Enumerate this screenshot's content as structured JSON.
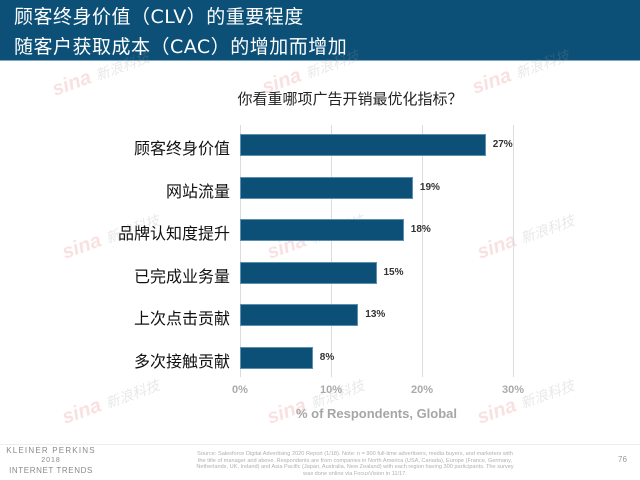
{
  "header": {
    "title_line1": "顾客终身价值（CLV）的重要程度",
    "title_line2": "随客户获取成本（CAC）的增加而增加",
    "background_color": "#0c5078"
  },
  "chart_data": {
    "type": "bar",
    "orientation": "horizontal",
    "title": "你看重哪项广告开销最优化指标？",
    "categories": [
      "顾客终身价值",
      "网站流量",
      "品牌认知度提升",
      "已完成业务量",
      "上次点击贡献",
      "多次接触贡献"
    ],
    "values": [
      27,
      19,
      18,
      15,
      13,
      8
    ],
    "value_labels": [
      "27%",
      "19%",
      "18%",
      "15%",
      "13%",
      "8%"
    ],
    "xlabel": "% of Respondents, Global",
    "ylabel": "",
    "xlim": [
      0,
      30
    ],
    "x_ticks": [
      "0%",
      "10%",
      "20%",
      "30%"
    ],
    "grid": true,
    "bar_color": "#0c5078",
    "legend": null
  },
  "footer": {
    "brand_line1": "KLEINER PERKINS",
    "brand_line2": "2018",
    "brand_line3": "INTERNET TRENDS",
    "source": "Source: Salesforce Digital Advertising 2020 Report (1/18). Note: n = 900 full-time advertisers, media buyers, and marketers with the title of manager and above. Respondents are from companies in North America (USA, Canada), Europe (France, Germany, Netherlands, UK, Ireland) and Asia Pacific (Japan, Australia, New Zealand) with each region having 300 participants. The survey was done online via FocusVision in 11/17.",
    "page_number": "76"
  },
  "watermark": {
    "logo_text": "sina",
    "cn_text": "新浪科技"
  }
}
